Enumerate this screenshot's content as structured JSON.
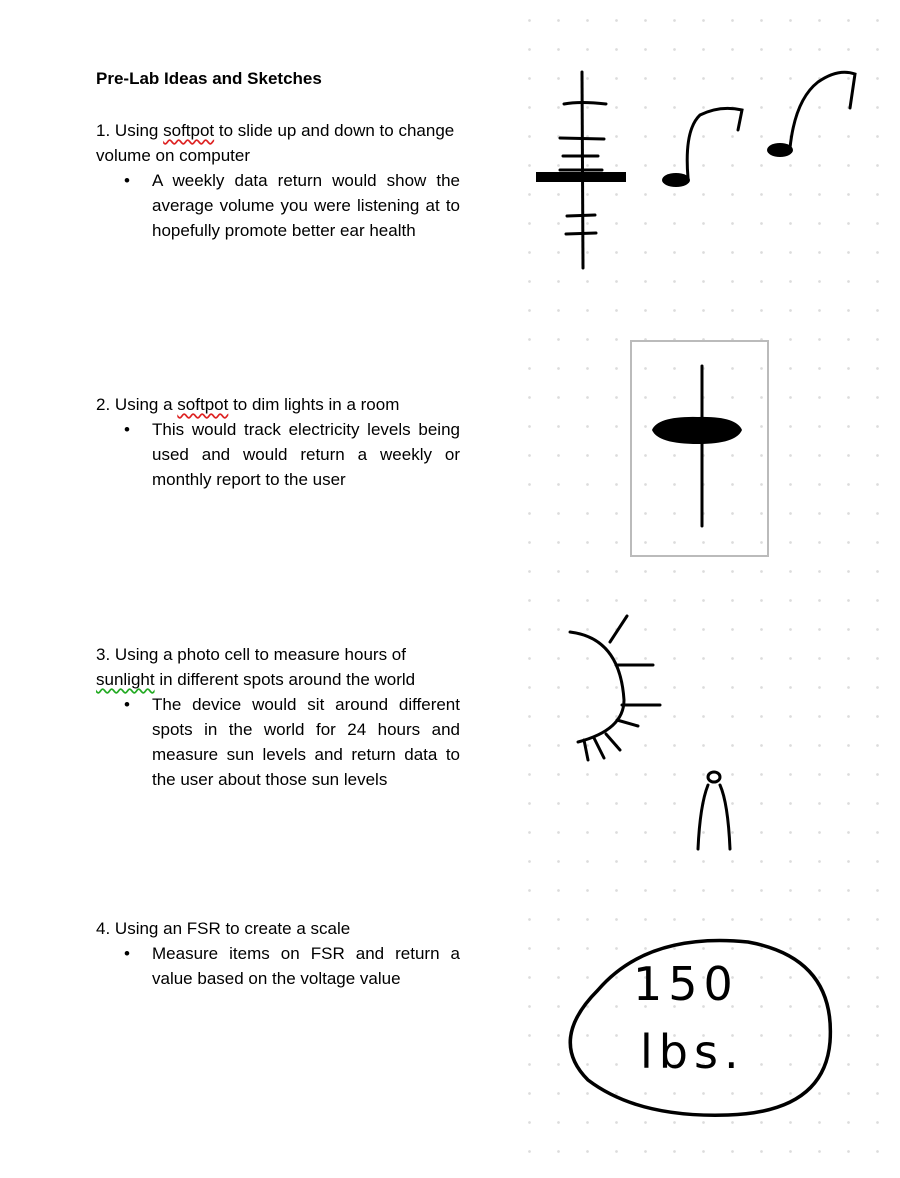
{
  "document": {
    "title": "Pre-Lab Ideas and Sketches",
    "items": [
      {
        "number": "1.",
        "pre": "Using ",
        "flagged": "softpot",
        "post": " to slide up and down to change volume on computer",
        "bullet": "A weekly data return would show the average volume you were listening at to hopefully promote better ear health"
      },
      {
        "number": "2.",
        "pre": "Using a ",
        "flagged": "softpot",
        "post": " to dim lights in a room",
        "bullet": "This would track electricity levels being used and would return a weekly or monthly report to the user"
      },
      {
        "number": "3.",
        "pre": "Using a photo cell to measure hours of ",
        "flagged": "sunlight",
        "post": " in different spots around the world",
        "bullet": "The device would sit around different spots in the world for 24 hours and measure sun levels and return data to the user about those sun levels"
      },
      {
        "number": "4.",
        "pre": "Using an FSR to create a scale",
        "flagged": "",
        "post": "",
        "bullet": "Measure items on FSR and return a value based on the voltage value"
      }
    ]
  },
  "sketches": {
    "scale_reading_line1": "150",
    "scale_reading_line2": "lbs.",
    "icons": [
      "volume-slider-sketch-icon",
      "music-notes-sketch-icon",
      "dimmer-switch-sketch-icon",
      "sun-sketch-icon",
      "photocell-sketch-icon",
      "scale-display-sketch-icon"
    ]
  },
  "colors": {
    "spelling_squiggle": "#dd2222",
    "grammar_squiggle": "#22aa22",
    "ink": "#000000",
    "dot_grid": "#dcdcdc"
  }
}
